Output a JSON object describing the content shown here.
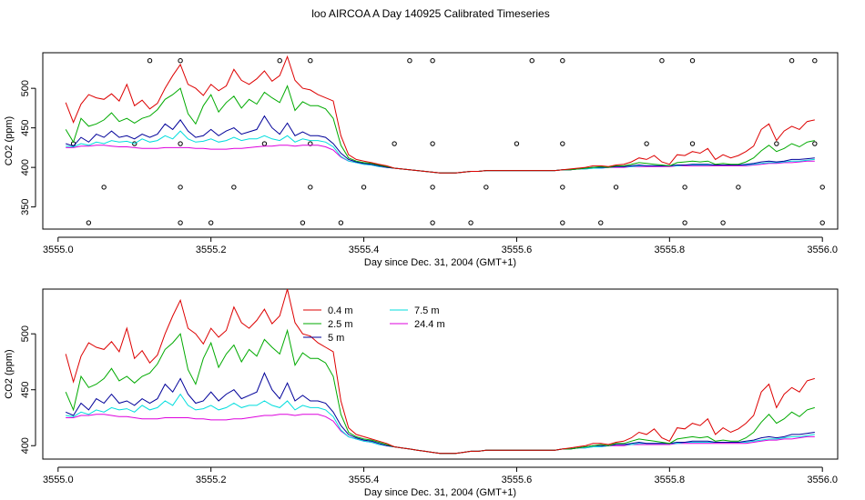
{
  "page": {
    "title": "loo AIRCOA A  Day 140925  Calibrated Timeseries"
  },
  "chart_data": [
    {
      "type": "line",
      "xlabel": "Day since Dec. 31, 2004 (GMT+1)",
      "ylabel": "CO2 (ppm)",
      "xlim": [
        3554.98,
        3556.02
      ],
      "ylim": [
        322,
        545
      ],
      "xticks": [
        "3555.0",
        "3555.2",
        "3555.4",
        "3555.6",
        "3555.8",
        "3556.0"
      ],
      "xtick_values": [
        3555.0,
        3555.2,
        3555.4,
        3555.6,
        3555.8,
        3556.0
      ],
      "yticks": [
        "350",
        "400",
        "450",
        "500"
      ],
      "ytick_values": [
        350,
        400,
        450,
        500
      ],
      "legend": "none",
      "grid": false,
      "status_markers": {
        "description_free": true,
        "x": [
          3555.02,
          3555.04,
          3555.06,
          3555.1,
          3555.12,
          3555.16,
          3555.16,
          3555.16,
          3555.16,
          3555.2,
          3555.23,
          3555.27,
          3555.29,
          3555.32,
          3555.33,
          3555.33,
          3555.33,
          3555.37,
          3555.4,
          3555.44,
          3555.46,
          3555.49,
          3555.49,
          3555.49,
          3555.49,
          3555.54,
          3555.56,
          3555.6,
          3555.62,
          3555.66,
          3555.66,
          3555.66,
          3555.66,
          3555.71,
          3555.73,
          3555.77,
          3555.79,
          3555.82,
          3555.82,
          3555.83,
          3555.83,
          3555.87,
          3555.89,
          3555.94,
          3555.96,
          3555.99,
          3555.99,
          3556.0,
          3556.0
        ],
        "y": [
          430,
          330,
          375,
          430,
          535,
          330,
          375,
          430,
          535,
          330,
          375,
          430,
          535,
          330,
          375,
          430,
          535,
          330,
          375,
          430,
          535,
          330,
          375,
          430,
          535,
          330,
          375,
          430,
          535,
          330,
          375,
          430,
          535,
          330,
          375,
          430,
          535,
          330,
          375,
          430,
          535,
          330,
          375,
          430,
          535,
          535,
          430,
          375,
          330
        ]
      },
      "series": [
        {
          "name": "0.4 m",
          "color": "#dd0000",
          "key": "s04"
        },
        {
          "name": "2.5 m",
          "color": "#00aa00",
          "key": "s25"
        },
        {
          "name": "5 m",
          "color": "#000099",
          "key": "s5"
        },
        {
          "name": "7.5 m",
          "color": "#00dddd",
          "key": "s75"
        },
        {
          "name": "24.4 m",
          "color": "#dd00dd",
          "key": "s244"
        }
      ]
    },
    {
      "type": "line",
      "xlabel": "Day since Dec. 31, 2004 (GMT+1)",
      "ylabel": "CO2 (ppm)",
      "xlim": [
        3554.98,
        3556.02
      ],
      "ylim": [
        388,
        540
      ],
      "xticks": [
        "3555.0",
        "3555.2",
        "3555.4",
        "3555.6",
        "3555.8",
        "3556.0"
      ],
      "xtick_values": [
        3555.0,
        3555.2,
        3555.4,
        3555.6,
        3555.8,
        3556.0
      ],
      "yticks": [
        "400",
        "450",
        "500"
      ],
      "ytick_values": [
        400,
        450,
        500
      ],
      "legend": "top-left",
      "grid": false,
      "series": [
        {
          "name": "0.4 m",
          "color": "#dd0000",
          "key": "s04"
        },
        {
          "name": "2.5 m",
          "color": "#00aa00",
          "key": "s25"
        },
        {
          "name": "5 m",
          "color": "#000099",
          "key": "s5"
        },
        {
          "name": "7.5 m",
          "color": "#00dddd",
          "key": "s75"
        },
        {
          "name": "24.4 m",
          "color": "#dd00dd",
          "key": "s244"
        }
      ]
    }
  ],
  "series_values": {
    "x": [
      3555.01,
      3555.02,
      3555.03,
      3555.04,
      3555.05,
      3555.06,
      3555.07,
      3555.08,
      3555.09,
      3555.1,
      3555.11,
      3555.12,
      3555.13,
      3555.14,
      3555.15,
      3555.16,
      3555.17,
      3555.18,
      3555.19,
      3555.2,
      3555.21,
      3555.22,
      3555.23,
      3555.24,
      3555.25,
      3555.26,
      3555.27,
      3555.28,
      3555.29,
      3555.3,
      3555.31,
      3555.32,
      3555.33,
      3555.34,
      3555.35,
      3555.36,
      3555.37,
      3555.38,
      3555.39,
      3555.4,
      3555.41,
      3555.42,
      3555.43,
      3555.44,
      3555.45,
      3555.46,
      3555.47,
      3555.48,
      3555.49,
      3555.5,
      3555.51,
      3555.52,
      3555.53,
      3555.54,
      3555.55,
      3555.56,
      3555.57,
      3555.58,
      3555.59,
      3555.6,
      3555.61,
      3555.62,
      3555.63,
      3555.64,
      3555.65,
      3555.66,
      3555.67,
      3555.68,
      3555.69,
      3555.7,
      3555.71,
      3555.72,
      3555.73,
      3555.74,
      3555.75,
      3555.76,
      3555.77,
      3555.78,
      3555.79,
      3555.8,
      3555.81,
      3555.82,
      3555.83,
      3555.84,
      3555.85,
      3555.86,
      3555.87,
      3555.88,
      3555.89,
      3555.9,
      3555.91,
      3555.92,
      3555.93,
      3555.94,
      3555.95,
      3555.96,
      3555.97,
      3555.98,
      3555.99
    ],
    "s04": [
      482,
      457,
      480,
      492,
      488,
      486,
      493,
      484,
      505,
      478,
      485,
      474,
      481,
      500,
      516,
      530,
      505,
      500,
      491,
      505,
      497,
      503,
      524,
      510,
      505,
      512,
      522,
      509,
      516,
      540,
      510,
      500,
      498,
      492,
      488,
      484,
      440,
      416,
      410,
      408,
      406,
      404,
      402,
      399,
      398,
      397,
      396,
      395,
      394,
      393,
      393,
      393,
      394,
      395,
      395,
      396,
      396,
      396,
      396,
      396,
      396,
      396,
      396,
      396,
      396,
      397,
      398,
      399,
      400,
      402,
      402,
      401,
      403,
      404,
      407,
      412,
      410,
      415,
      407,
      404,
      416,
      415,
      420,
      418,
      424,
      410,
      416,
      412,
      415,
      420,
      427,
      448,
      455,
      434,
      446,
      452,
      448,
      458,
      460
    ],
    "s25": [
      448,
      432,
      462,
      452,
      455,
      460,
      469,
      458,
      462,
      456,
      462,
      465,
      473,
      486,
      492,
      500,
      468,
      455,
      478,
      492,
      470,
      482,
      490,
      475,
      486,
      480,
      495,
      488,
      482,
      503,
      472,
      483,
      478,
      478,
      474,
      462,
      428,
      412,
      408,
      406,
      405,
      403,
      401,
      399,
      398,
      397,
      396,
      395,
      394,
      393,
      393,
      393,
      394,
      395,
      395,
      396,
      396,
      396,
      396,
      396,
      396,
      396,
      396,
      396,
      396,
      397,
      397,
      398,
      399,
      400,
      401,
      400,
      402,
      402,
      404,
      406,
      405,
      404,
      403,
      402,
      406,
      407,
      408,
      407,
      408,
      404,
      405,
      404,
      404,
      407,
      412,
      421,
      428,
      420,
      424,
      430,
      426,
      432,
      434
    ],
    "s5": [
      430,
      427,
      438,
      432,
      442,
      438,
      446,
      438,
      440,
      436,
      442,
      438,
      442,
      455,
      448,
      460,
      446,
      438,
      440,
      448,
      440,
      446,
      450,
      442,
      445,
      448,
      465,
      450,
      442,
      456,
      440,
      445,
      440,
      440,
      438,
      430,
      418,
      410,
      407,
      405,
      404,
      402,
      400,
      399,
      398,
      397,
      396,
      395,
      394,
      393,
      393,
      393,
      394,
      395,
      395,
      396,
      396,
      396,
      396,
      396,
      396,
      396,
      396,
      396,
      396,
      397,
      397,
      398,
      399,
      400,
      400,
      400,
      401,
      401,
      402,
      403,
      402,
      402,
      402,
      402,
      403,
      403,
      404,
      404,
      404,
      403,
      403,
      403,
      403,
      404,
      405,
      407,
      408,
      407,
      408,
      410,
      410,
      411,
      412
    ],
    "s75": [
      427,
      426,
      430,
      428,
      432,
      430,
      434,
      432,
      433,
      430,
      436,
      432,
      434,
      440,
      436,
      446,
      436,
      432,
      433,
      436,
      432,
      434,
      438,
      434,
      436,
      436,
      440,
      436,
      434,
      440,
      432,
      436,
      434,
      434,
      432,
      426,
      414,
      408,
      406,
      404,
      403,
      401,
      400,
      399,
      398,
      397,
      396,
      395,
      394,
      393,
      393,
      393,
      394,
      395,
      395,
      396,
      396,
      396,
      396,
      396,
      396,
      396,
      396,
      396,
      396,
      397,
      397,
      398,
      398,
      399,
      399,
      400,
      401,
      401,
      401,
      402,
      402,
      402,
      402,
      402,
      402,
      403,
      403,
      403,
      403,
      403,
      403,
      403,
      403,
      403,
      404,
      405,
      406,
      406,
      407,
      408,
      408,
      409,
      410
    ],
    "s244": [
      425,
      425,
      427,
      427,
      428,
      428,
      427,
      426,
      426,
      425,
      424,
      424,
      424,
      425,
      425,
      425,
      425,
      424,
      424,
      423,
      423,
      423,
      424,
      424,
      425,
      426,
      427,
      427,
      428,
      428,
      427,
      428,
      428,
      428,
      426,
      422,
      413,
      408,
      406,
      404,
      403,
      401,
      400,
      399,
      398,
      397,
      396,
      395,
      394,
      393,
      393,
      393,
      394,
      395,
      395,
      396,
      396,
      396,
      396,
      396,
      396,
      396,
      396,
      396,
      396,
      397,
      397,
      398,
      398,
      399,
      399,
      400,
      400,
      400,
      401,
      401,
      401,
      401,
      401,
      401,
      402,
      402,
      402,
      402,
      402,
      402,
      402,
      402,
      402,
      402,
      403,
      404,
      405,
      405,
      406,
      406,
      407,
      408,
      408
    ]
  }
}
